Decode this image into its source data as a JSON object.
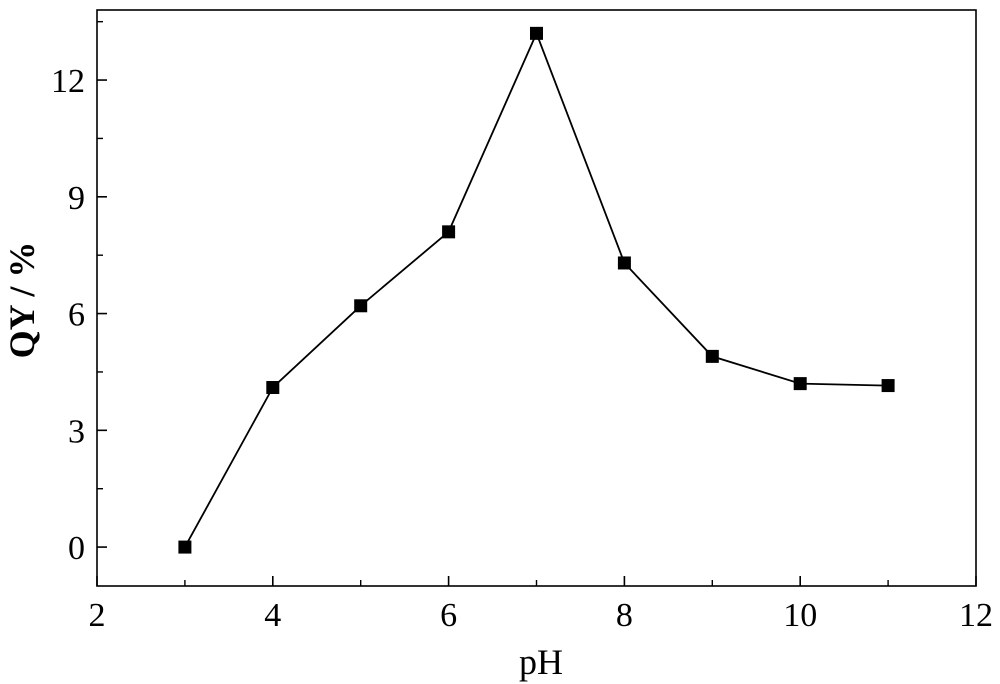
{
  "chart_data": {
    "type": "line",
    "title": "",
    "xlabel": "pH",
    "ylabel": "QY / %",
    "xlim": [
      2,
      12
    ],
    "ylim": [
      -1,
      13.8
    ],
    "x_ticks": [
      2,
      4,
      6,
      8,
      10,
      12
    ],
    "y_ticks": [
      0,
      3,
      6,
      9,
      12
    ],
    "x_tick_labels": [
      "2",
      "4",
      "6",
      "8",
      "10",
      "12"
    ],
    "y_tick_labels": [
      "0",
      "3",
      "6",
      "9",
      "12"
    ],
    "grid": false,
    "series": [
      {
        "x": [
          3,
          4,
          5,
          6,
          7,
          8,
          9,
          10,
          11
        ],
        "y": [
          0.0,
          4.1,
          6.2,
          8.1,
          13.2,
          7.3,
          4.9,
          4.2,
          4.15
        ],
        "marker": "square",
        "color": "#000000"
      }
    ]
  }
}
